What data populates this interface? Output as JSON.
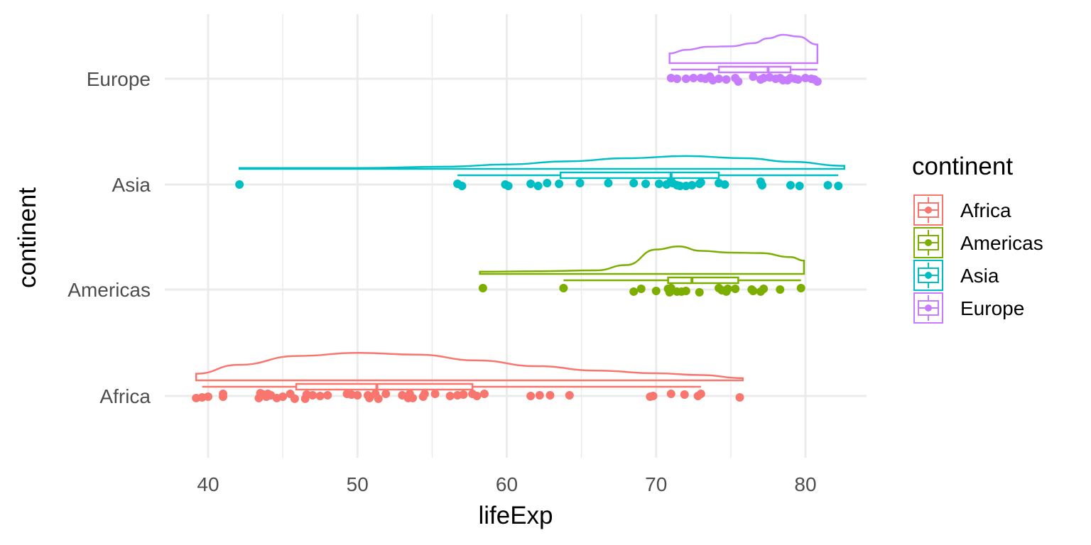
{
  "chart_data": {
    "type": "raincloud",
    "title": "",
    "xlabel": "lifeExp",
    "ylabel": "continent",
    "xlim": [
      37.5,
      84.5
    ],
    "x_ticks": [
      40,
      50,
      60,
      70,
      80
    ],
    "x_tick_labels": [
      "40",
      "50",
      "60",
      "70",
      "80"
    ],
    "x_minor_ticks": [
      45,
      55,
      65,
      75
    ],
    "categories": [
      "Africa",
      "Americas",
      "Asia",
      "Europe"
    ],
    "grid": true,
    "legend": {
      "title": "continent",
      "position": "right",
      "entries": [
        "Africa",
        "Americas",
        "Asia",
        "Europe"
      ]
    },
    "series": [
      {
        "name": "Africa",
        "color": "#F8766D",
        "box": {
          "min": 39.6,
          "q1": 45.9,
          "median": 51.3,
          "q3": 57.7,
          "max": 73.0,
          "outliers": [
            75.6
          ]
        },
        "density_range": [
          39.2,
          75.8
        ],
        "density": [
          [
            39.2,
            0.15
          ],
          [
            42,
            0.35
          ],
          [
            46,
            0.55
          ],
          [
            50,
            0.62
          ],
          [
            54,
            0.58
          ],
          [
            58,
            0.45
          ],
          [
            62,
            0.32
          ],
          [
            66,
            0.22
          ],
          [
            70,
            0.16
          ],
          [
            73,
            0.12
          ],
          [
            75.8,
            0.05
          ]
        ],
        "points": [
          [
            39.2,
            -0.03
          ],
          [
            39.6,
            -0.02
          ],
          [
            40.0,
            -0.01
          ],
          [
            41.0,
            0.03
          ],
          [
            41.0,
            -0.01
          ],
          [
            43.5,
            0.04
          ],
          [
            43.7,
            0.02
          ],
          [
            43.4,
            -0.03
          ],
          [
            44.0,
            0.03
          ],
          [
            44.2,
            0.01
          ],
          [
            43.9,
            -0.01
          ],
          [
            44.6,
            -0.03
          ],
          [
            45.0,
            -0.01
          ],
          [
            45.5,
            0.03
          ],
          [
            45.8,
            -0.04
          ],
          [
            46.5,
            -0.04
          ],
          [
            46.6,
            0.02
          ],
          [
            47.0,
            0.01
          ],
          [
            47.5,
            0.0
          ],
          [
            48.0,
            0.01
          ],
          [
            49.3,
            0.03
          ],
          [
            49.6,
            0.02
          ],
          [
            50.0,
            0.01
          ],
          [
            50.7,
            0.01
          ],
          [
            50.8,
            -0.03
          ],
          [
            51.2,
            0.03
          ],
          [
            51.4,
            -0.04
          ],
          [
            51.9,
            0.03
          ],
          [
            53.0,
            0.01
          ],
          [
            53.5,
            0.03
          ],
          [
            53.4,
            -0.03
          ],
          [
            53.7,
            -0.03
          ],
          [
            54.5,
            0.03
          ],
          [
            54.4,
            -0.01
          ],
          [
            55.2,
            0.03
          ],
          [
            56.2,
            0.0
          ],
          [
            56.7,
            0.01
          ],
          [
            57.1,
            0.02
          ],
          [
            57.7,
            0.03
          ],
          [
            58.0,
            0.0
          ],
          [
            58.5,
            0.03
          ],
          [
            61.6,
            0.0
          ],
          [
            62.2,
            0.01
          ],
          [
            62.9,
            0.01
          ],
          [
            64.2,
            0.01
          ],
          [
            69.6,
            -0.01
          ],
          [
            69.8,
            0.0
          ],
          [
            71.0,
            0.03
          ],
          [
            71.9,
            0.02
          ],
          [
            72.8,
            0.0
          ],
          [
            73.0,
            0.03
          ],
          [
            75.6,
            -0.02
          ]
        ]
      },
      {
        "name": "Americas",
        "color": "#7CAE00",
        "box": {
          "min": 63.8,
          "q1": 70.8,
          "median": 72.4,
          "q3": 75.5,
          "max": 79.7,
          "outliers": [
            58.4
          ]
        },
        "density_range": [
          58.2,
          79.9
        ],
        "density": [
          [
            58.2,
            0.05
          ],
          [
            62,
            0.06
          ],
          [
            66,
            0.08
          ],
          [
            68,
            0.2
          ],
          [
            70,
            0.55
          ],
          [
            71.5,
            0.62
          ],
          [
            73,
            0.52
          ],
          [
            75,
            0.48
          ],
          [
            77,
            0.47
          ],
          [
            79,
            0.38
          ],
          [
            79.9,
            0.3
          ]
        ],
        "points": [
          [
            58.4,
            0.02
          ],
          [
            63.8,
            0.02
          ],
          [
            68.5,
            -0.03
          ],
          [
            69.0,
            0.01
          ],
          [
            70.0,
            -0.02
          ],
          [
            70.8,
            0.01
          ],
          [
            70.9,
            -0.04
          ],
          [
            71.0,
            -0.02
          ],
          [
            71.0,
            0.02
          ],
          [
            71.4,
            -0.03
          ],
          [
            71.7,
            -0.03
          ],
          [
            72.0,
            -0.02
          ],
          [
            72.9,
            -0.04
          ],
          [
            74.2,
            0.02
          ],
          [
            74.4,
            -0.01
          ],
          [
            74.8,
            0.01
          ],
          [
            74.7,
            -0.03
          ],
          [
            75.3,
            0.01
          ],
          [
            76.4,
            0.0
          ],
          [
            76.5,
            -0.02
          ],
          [
            77.0,
            -0.03
          ],
          [
            77.2,
            0.01
          ],
          [
            78.3,
            0.0
          ],
          [
            79.7,
            0.02
          ]
        ]
      },
      {
        "name": "Asia",
        "color": "#00BFC4",
        "box": {
          "min": 56.7,
          "q1": 63.6,
          "median": 71.0,
          "q3": 74.2,
          "max": 82.2,
          "outliers": [
            42.1
          ]
        },
        "density_range": [
          42.1,
          82.6
        ],
        "density": [
          [
            42.1,
            0.02
          ],
          [
            50,
            0.02
          ],
          [
            56,
            0.05
          ],
          [
            60,
            0.1
          ],
          [
            64,
            0.17
          ],
          [
            68,
            0.24
          ],
          [
            72,
            0.29
          ],
          [
            76,
            0.24
          ],
          [
            79,
            0.16
          ],
          [
            82.6,
            0.07
          ]
        ],
        "points": [
          [
            42.1,
            0.0
          ],
          [
            56.7,
            0.01
          ],
          [
            57.0,
            -0.02
          ],
          [
            59.9,
            0.0
          ],
          [
            60.1,
            -0.02
          ],
          [
            61.6,
            0.01
          ],
          [
            62.1,
            -0.02
          ],
          [
            62.7,
            0.02
          ],
          [
            63.5,
            0.01
          ],
          [
            64.9,
            0.02
          ],
          [
            66.8,
            0.02
          ],
          [
            68.5,
            0.02
          ],
          [
            69.3,
            0.01
          ],
          [
            70.2,
            0.01
          ],
          [
            70.7,
            0.0
          ],
          [
            71.0,
            0.05
          ],
          [
            71.1,
            0.02
          ],
          [
            71.4,
            -0.01
          ],
          [
            71.6,
            -0.02
          ],
          [
            72.0,
            -0.02
          ],
          [
            72.4,
            -0.01
          ],
          [
            72.9,
            0.01
          ],
          [
            73.0,
            0.03
          ],
          [
            74.2,
            0.02
          ],
          [
            74.6,
            0.0
          ],
          [
            77.0,
            0.04
          ],
          [
            77.1,
            -0.01
          ],
          [
            79.0,
            -0.01
          ],
          [
            79.6,
            -0.02
          ],
          [
            81.5,
            -0.01
          ],
          [
            82.2,
            -0.02
          ]
        ]
      },
      {
        "name": "Europe",
        "color": "#C77CFF",
        "box": {
          "min": 71.0,
          "q1": 74.2,
          "median": 77.5,
          "q3": 79.0,
          "max": 80.8,
          "outliers": []
        },
        "density_range": [
          70.9,
          80.8
        ],
        "density": [
          [
            70.9,
            0.22
          ],
          [
            72,
            0.3
          ],
          [
            73.5,
            0.37
          ],
          [
            75,
            0.38
          ],
          [
            76.5,
            0.45
          ],
          [
            77.5,
            0.56
          ],
          [
            78.5,
            0.64
          ],
          [
            79.5,
            0.6
          ],
          [
            80.8,
            0.42
          ]
        ],
        "points": [
          [
            71.0,
            0.01
          ],
          [
            71.4,
            0.0
          ],
          [
            72.0,
            0.0
          ],
          [
            72.5,
            0.01
          ],
          [
            73.0,
            0.01
          ],
          [
            73.3,
            0.0
          ],
          [
            73.6,
            0.03
          ],
          [
            73.8,
            -0.02
          ],
          [
            74.2,
            0.0
          ],
          [
            74.7,
            -0.01
          ],
          [
            75.3,
            0.01
          ],
          [
            75.5,
            -0.04
          ],
          [
            76.5,
            0.03
          ],
          [
            77.0,
            -0.01
          ],
          [
            77.2,
            0.01
          ],
          [
            77.6,
            0.02
          ],
          [
            78.0,
            0.0
          ],
          [
            78.3,
            0.01
          ],
          [
            78.5,
            -0.02
          ],
          [
            78.8,
            -0.02
          ],
          [
            79.0,
            0.01
          ],
          [
            79.3,
            0.0
          ],
          [
            79.5,
            -0.01
          ],
          [
            80.0,
            0.01
          ],
          [
            80.4,
            0.0
          ],
          [
            80.6,
            -0.01
          ],
          [
            80.8,
            -0.04
          ]
        ]
      }
    ]
  }
}
